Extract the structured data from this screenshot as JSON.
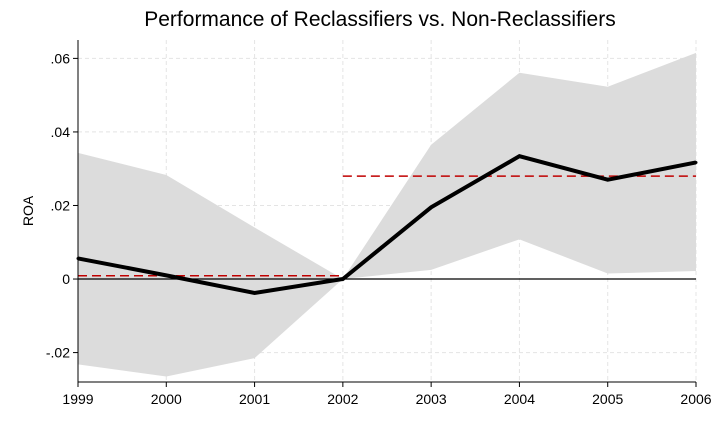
{
  "chart_data": {
    "type": "line",
    "title": "Performance of Reclassifiers vs. Non-Reclassifiers",
    "ylabel": "ROA",
    "xlabel": "",
    "x": [
      1999,
      2000,
      2001,
      2002,
      2003,
      2004,
      2005,
      2006
    ],
    "x_tick_labels": [
      "1999",
      "2000",
      "2001",
      "2002",
      "2003",
      "2004",
      "2005",
      "2006"
    ],
    "ylim": [
      -0.028,
      0.065
    ],
    "y_ticks": [
      -0.02,
      0,
      0.02,
      0.04,
      0.06
    ],
    "y_tick_labels": [
      "-.02",
      "0",
      ".02",
      ".04",
      ".06"
    ],
    "grid": true,
    "series": [
      {
        "values": [
          0.0056,
          0.001,
          -0.0038,
          0.0,
          0.0195,
          0.0334,
          0.027,
          0.0317
        ],
        "color": "#000000"
      }
    ],
    "confidence_band": {
      "lower": [
        -0.0232,
        -0.0265,
        -0.0215,
        0.0,
        0.0025,
        0.0108,
        0.0015,
        0.0022
      ],
      "upper": [
        0.0343,
        0.0283,
        0.014,
        0.0,
        0.0365,
        0.0561,
        0.0523,
        0.0615
      ],
      "color": "#dcdcdc"
    },
    "reference_lines": [
      {
        "kind": "dashed",
        "from_x": 1999,
        "to_x": 2002,
        "y": 0.0009,
        "color": "#c00000"
      },
      {
        "kind": "dashed",
        "from_x": 2002,
        "to_x": 2006,
        "y": 0.028,
        "color": "#c00000"
      },
      {
        "kind": "solid-zero",
        "from_x": 1999,
        "to_x": 2006,
        "y": 0.0,
        "color": "#000000"
      }
    ]
  }
}
